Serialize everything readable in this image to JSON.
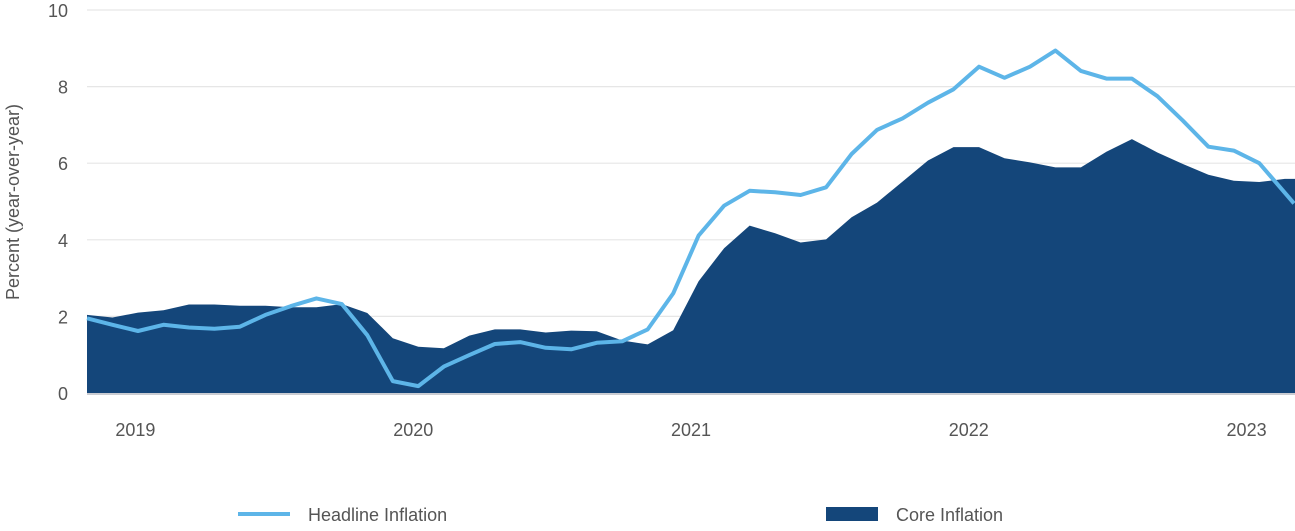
{
  "chart_data": {
    "type": "area",
    "title": "",
    "xlabel": "",
    "ylabel": "Percent (year-over-year)",
    "ylim": [
      0,
      10
    ],
    "yticks": [
      0,
      2,
      4,
      6,
      8,
      10
    ],
    "xlim": [
      0,
      47.4
    ],
    "grid": true,
    "legend_placement": "bottom",
    "x_tick_labels": [
      {
        "label": "2019",
        "x": 1.9
      },
      {
        "label": "2020",
        "x": 12.8
      },
      {
        "label": "2021",
        "x": 23.7
      },
      {
        "label": "2022",
        "x": 34.6
      },
      {
        "label": "2023",
        "x": 45.5
      }
    ],
    "series": [
      {
        "name": "Core Inflation",
        "kind": "area",
        "color": "#14467a",
        "values": [
          2.04,
          1.97,
          2.1,
          2.16,
          2.31,
          2.31,
          2.28,
          2.28,
          2.24,
          2.24,
          2.32,
          2.09,
          1.43,
          1.21,
          1.17,
          1.5,
          1.66,
          1.66,
          1.58,
          1.63,
          1.61,
          1.37,
          1.27,
          1.64,
          2.92,
          3.78,
          4.37,
          4.17,
          3.93,
          4.01,
          4.59,
          4.97,
          5.52,
          6.07,
          6.42,
          6.42,
          6.13,
          6.02,
          5.89,
          5.89,
          6.3,
          6.63,
          6.28,
          5.98,
          5.7,
          5.54,
          5.51,
          5.59
        ]
      },
      {
        "name": "Headline Inflation",
        "kind": "line",
        "color": "#5db5e8",
        "values": [
          1.95,
          1.78,
          1.62,
          1.78,
          1.71,
          1.68,
          1.73,
          2.04,
          2.27,
          2.47,
          2.32,
          1.51,
          0.31,
          0.18,
          0.69,
          0.99,
          1.28,
          1.33,
          1.18,
          1.14,
          1.31,
          1.35,
          1.66,
          2.6,
          4.11,
          4.89,
          5.28,
          5.24,
          5.17,
          5.37,
          6.24,
          6.87,
          7.17,
          7.58,
          7.93,
          8.52,
          8.23,
          8.52,
          8.94,
          8.41,
          8.21,
          8.21,
          7.75,
          7.11,
          6.43,
          6.33,
          6.0,
          4.95
        ]
      }
    ]
  }
}
